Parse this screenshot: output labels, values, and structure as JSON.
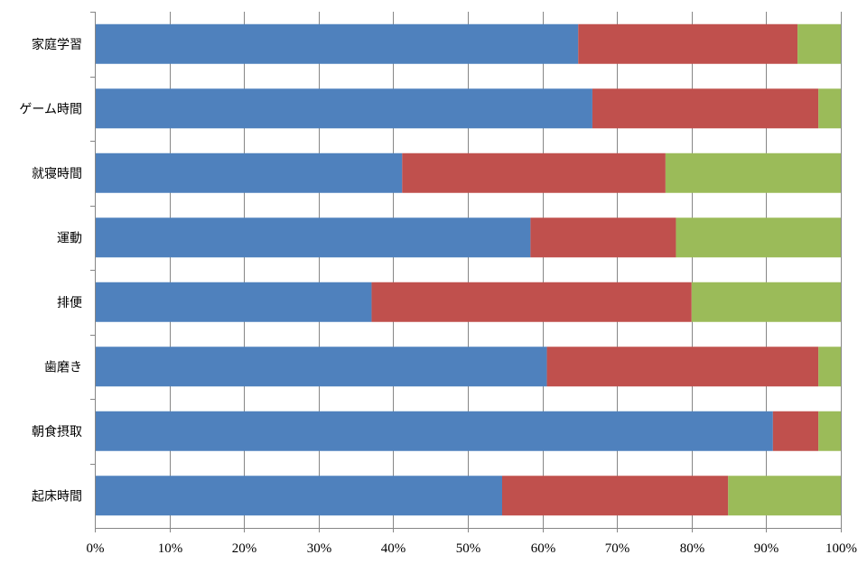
{
  "chart_data": {
    "type": "bar",
    "orientation": "horizontal",
    "stacked": "percent",
    "title": "",
    "xlabel": "",
    "ylabel": "",
    "xlim": [
      0,
      100
    ],
    "x_ticks": [
      "0%",
      "10%",
      "20%",
      "30%",
      "40%",
      "50%",
      "60%",
      "70%",
      "80%",
      "90%",
      "100%"
    ],
    "grid": "vertical",
    "legend": "none",
    "categories": [
      "家庭学習",
      "ゲーム時間",
      "就寝時間",
      "運動",
      "排便",
      "歯磨き",
      "朝食摂取",
      "起床時間"
    ],
    "series": [
      {
        "color": "#4F81BD",
        "values": [
          64.8,
          66.7,
          41.2,
          58.4,
          37.1,
          60.6,
          90.9,
          54.6
        ]
      },
      {
        "color": "#C0504D",
        "values": [
          29.4,
          30.3,
          35.3,
          19.5,
          42.9,
          36.4,
          6.1,
          30.3
        ]
      },
      {
        "color": "#9BBB59",
        "values": [
          5.8,
          3.0,
          23.5,
          22.1,
          20.0,
          3.0,
          3.0,
          15.1
        ]
      }
    ]
  }
}
